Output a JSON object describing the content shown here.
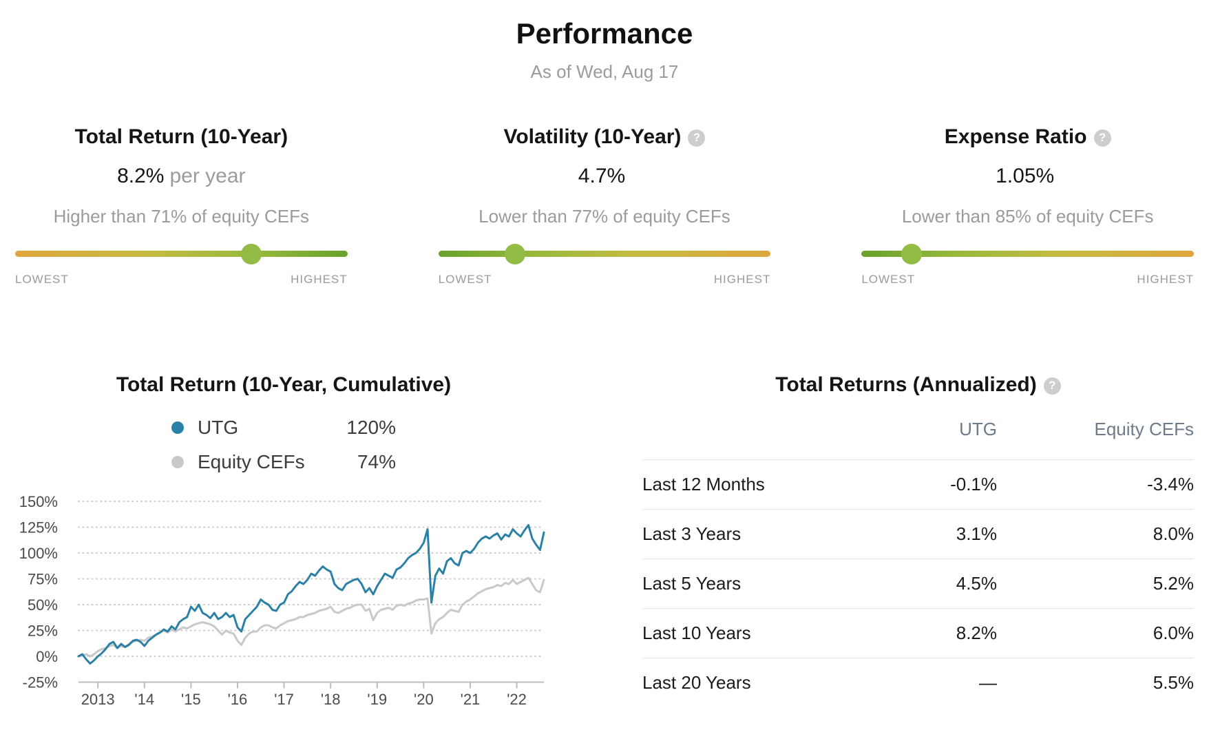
{
  "header": {
    "title": "Performance",
    "as_of": "As of Wed, Aug 17"
  },
  "icons": {
    "help": "?"
  },
  "metrics": [
    {
      "title": "Total Return (10-Year)",
      "show_help": false,
      "value": "8.2%",
      "suffix": "per year",
      "note": "Higher than 71% of equity CEFs",
      "percentile": 71,
      "gradient": "low-to-high",
      "scale_left": "LOWEST",
      "scale_right": "HIGHEST"
    },
    {
      "title": "Volatility (10-Year)",
      "show_help": true,
      "value": "4.7%",
      "suffix": "",
      "note": "Lower than 77% of equity CEFs",
      "percentile": 23,
      "gradient": "high-to-low",
      "scale_left": "LOWEST",
      "scale_right": "HIGHEST"
    },
    {
      "title": "Expense Ratio",
      "show_help": true,
      "value": "1.05%",
      "suffix": "",
      "note": "Lower than 85% of equity CEFs",
      "percentile": 15,
      "gradient": "high-to-low",
      "scale_left": "LOWEST",
      "scale_right": "HIGHEST"
    }
  ],
  "chart_data": {
    "type": "line",
    "title": "Total Return (10-Year, Cumulative)",
    "x_start": "2012-08",
    "x_end": "2022-08",
    "point_interval": "monthly",
    "x_ticks": [
      "2013",
      "'14",
      "'15",
      "'16",
      "'17",
      "'18",
      "'19",
      "'20",
      "'21",
      "'22"
    ],
    "y_ticks": [
      "150%",
      "125%",
      "100%",
      "75%",
      "50%",
      "25%",
      "0%",
      "-25%"
    ],
    "y_tick_values": [
      150,
      125,
      100,
      75,
      50,
      25,
      0,
      -25
    ],
    "ylim": [
      -25,
      150
    ],
    "grid": "dotted-horizontal",
    "legend": [
      {
        "name": "UTG",
        "end_label": "120%",
        "color": "#2b80a6"
      },
      {
        "name": "Equity CEFs",
        "end_label": "74%",
        "color": "#c9c9c9"
      }
    ],
    "series": [
      {
        "name": "UTG",
        "color": "#2b80a6",
        "values": [
          0,
          2,
          -3,
          -7,
          -4,
          0,
          3,
          7,
          12,
          14,
          8,
          12,
          9,
          11,
          15,
          16,
          14,
          10,
          15,
          18,
          21,
          23,
          26,
          24,
          29,
          26,
          33,
          36,
          38,
          48,
          44,
          50,
          42,
          40,
          37,
          42,
          36,
          38,
          42,
          38,
          40,
          28,
          24,
          36,
          40,
          44,
          48,
          55,
          52,
          50,
          45,
          44,
          50,
          52,
          60,
          63,
          68,
          72,
          70,
          74,
          80,
          78,
          83,
          87,
          84,
          82,
          70,
          66,
          64,
          70,
          72,
          74,
          75,
          70,
          62,
          66,
          60,
          68,
          74,
          80,
          78,
          76,
          84,
          86,
          90,
          95,
          98,
          100,
          104,
          110,
          123,
          52,
          78,
          85,
          80,
          92,
          95,
          90,
          88,
          100,
          102,
          100,
          104,
          110,
          114,
          116,
          114,
          117,
          119,
          113,
          118,
          116,
          123,
          119,
          116,
          122,
          127,
          114,
          108,
          103,
          120
        ]
      },
      {
        "name": "Equity CEFs",
        "color": "#c9c9c9",
        "values": [
          0,
          1,
          2,
          0,
          2,
          5,
          7,
          8,
          10,
          11,
          8,
          10,
          9,
          12,
          14,
          15,
          16,
          15,
          18,
          19,
          21,
          23,
          25,
          23,
          26,
          24,
          26,
          28,
          27,
          29,
          31,
          32,
          33,
          32,
          31,
          29,
          25,
          21,
          25,
          23,
          22,
          15,
          11,
          18,
          22,
          24,
          24,
          28,
          30,
          30,
          28,
          27,
          30,
          32,
          34,
          35,
          36,
          38,
          38,
          40,
          41,
          42,
          44,
          45,
          46,
          48,
          43,
          42,
          44,
          46,
          47,
          49,
          50,
          50,
          44,
          46,
          35,
          42,
          45,
          46,
          47,
          45,
          49,
          50,
          49,
          51,
          52,
          54,
          55,
          55,
          56,
          22,
          32,
          36,
          38,
          42,
          45,
          44,
          43,
          50,
          53,
          55,
          58,
          61,
          63,
          65,
          66,
          67,
          69,
          68,
          71,
          70,
          74,
          70,
          72,
          74,
          76,
          70,
          64,
          62,
          74
        ]
      }
    ]
  },
  "returns_table": {
    "title": "Total Returns (Annualized)",
    "show_help": true,
    "columns": [
      "UTG",
      "Equity CEFs"
    ],
    "rows": [
      {
        "label": "Last 12 Months",
        "utg": "-0.1%",
        "equity": "-3.4%"
      },
      {
        "label": "Last 3 Years",
        "utg": "3.1%",
        "equity": "8.0%"
      },
      {
        "label": "Last 5 Years",
        "utg": "4.5%",
        "equity": "5.2%"
      },
      {
        "label": "Last 10 Years",
        "utg": "8.2%",
        "equity": "6.0%"
      },
      {
        "label": "Last 20 Years",
        "utg": "—",
        "equity": "5.5%"
      }
    ]
  }
}
